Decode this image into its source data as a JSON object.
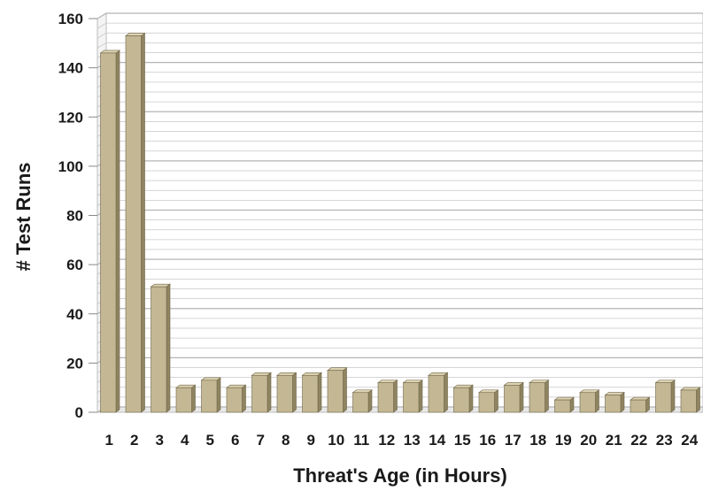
{
  "chart_data": {
    "type": "bar",
    "title": "",
    "xlabel": "Threat's Age (in Hours)",
    "ylabel": "# Test Runs",
    "categories": [
      "1",
      "2",
      "3",
      "4",
      "5",
      "6",
      "7",
      "8",
      "9",
      "10",
      "11",
      "12",
      "13",
      "14",
      "15",
      "16",
      "17",
      "18",
      "19",
      "20",
      "21",
      "22",
      "23",
      "24"
    ],
    "values": [
      146,
      153,
      51,
      10,
      13,
      10,
      15,
      15,
      15,
      17,
      8,
      12,
      12,
      15,
      10,
      8,
      11,
      12,
      5,
      8,
      7,
      5,
      12,
      9
    ],
    "ylim": [
      0,
      160
    ],
    "yticks": [
      "0",
      "20",
      "40",
      "60",
      "80",
      "100",
      "120",
      "140",
      "160"
    ],
    "grid": true,
    "legend": "none",
    "colors": {
      "bar_front": "#c4b894",
      "bar_side": "#8f8460",
      "bar_top": "#ddd3b2",
      "gridline": "#c8c8c8",
      "back_wall": "#ffffff"
    }
  }
}
